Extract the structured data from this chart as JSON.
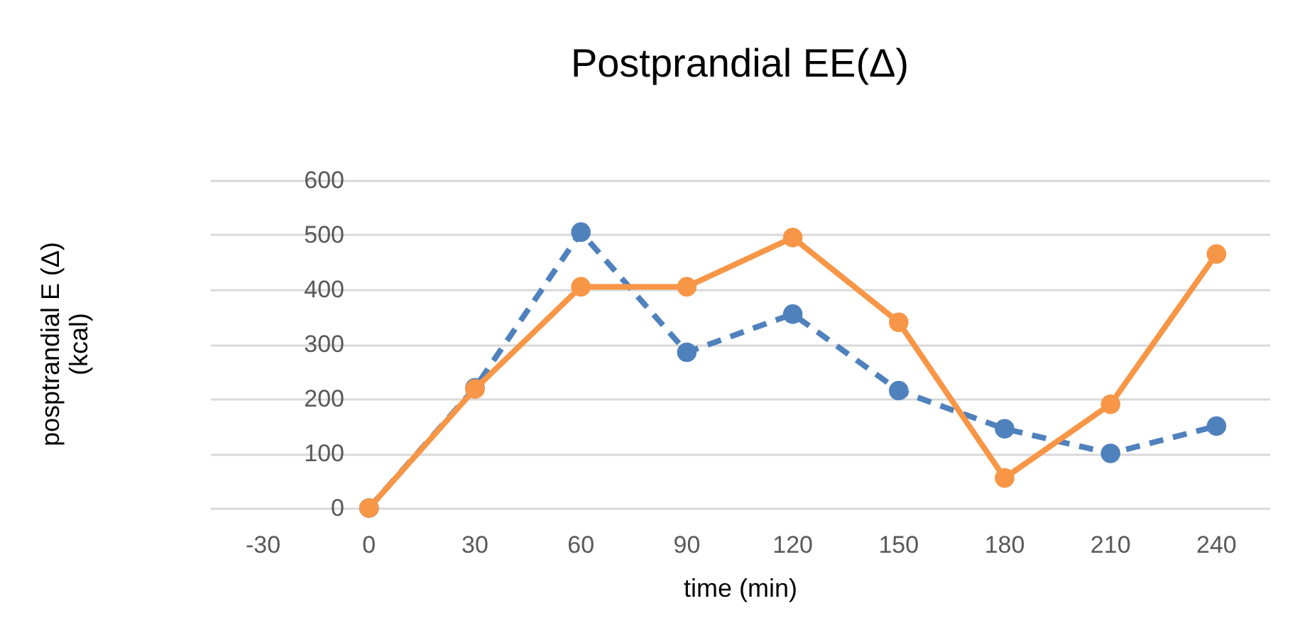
{
  "chart_data": {
    "type": "line",
    "title": "Postprandial EE(Δ)",
    "xlabel": "time (min)",
    "ylabel": "posptrandial E (Δ)\n(kcal)",
    "categories": [
      "-30",
      "0",
      "30",
      "60",
      "90",
      "120",
      "150",
      "180",
      "210",
      "240"
    ],
    "series": [
      {
        "color": "#4f81bd",
        "line_style": "dashed",
        "values": [
          null,
          0,
          220,
          505,
          285,
          355,
          215,
          145,
          100,
          150
        ]
      },
      {
        "color": "#f79646",
        "line_style": "solid",
        "values": [
          null,
          0,
          218,
          405,
          405,
          495,
          340,
          55,
          190,
          465
        ]
      }
    ],
    "ylim": [
      0,
      600
    ],
    "yticks": [
      0,
      100,
      200,
      300,
      400,
      500,
      600
    ],
    "grid": "y",
    "marker": "circle"
  }
}
